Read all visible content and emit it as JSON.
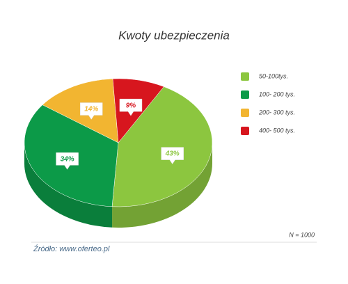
{
  "chart_data": {
    "type": "pie",
    "title": "Kwoty ubezpieczenia",
    "categories": [
      "50-100tys.",
      "100- 200 tys.",
      "200- 300 tys.",
      "400- 500 tys."
    ],
    "values": [
      43,
      34,
      14,
      9
    ],
    "value_labels": [
      "43%",
      "34%",
      "14%",
      "9%"
    ],
    "colors": [
      "#8cc63f",
      "#0c9a48",
      "#f2b531",
      "#d7161e"
    ],
    "legend": "right",
    "note": "N = 1000",
    "source": "Źródło: www.oferteo.pl"
  }
}
